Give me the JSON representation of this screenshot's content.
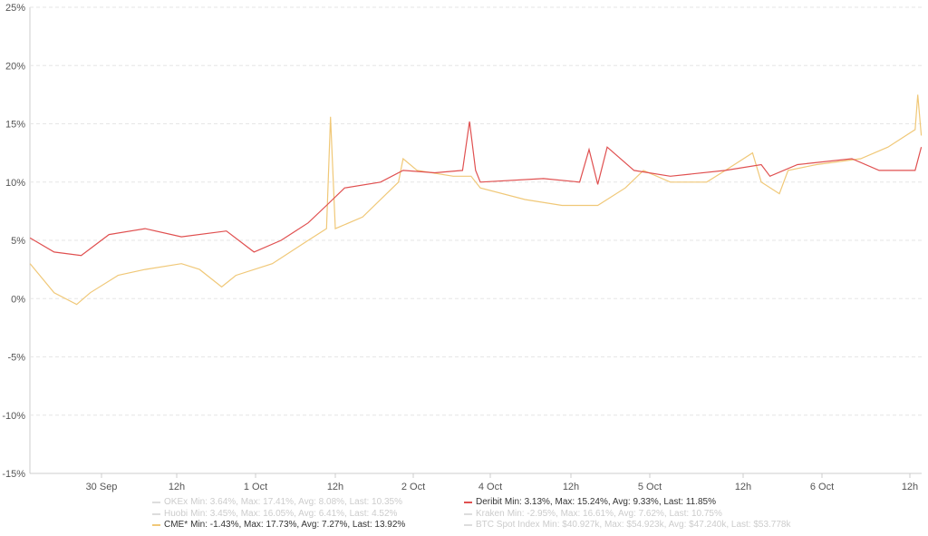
{
  "chart_data": {
    "type": "line",
    "title": "",
    "xlabel": "",
    "ylabel": "",
    "ylim": [
      -15,
      25
    ],
    "y_ticks": [
      "25%",
      "20%",
      "15%",
      "10%",
      "5%",
      "0%",
      "-5%",
      "-10%",
      "-15%"
    ],
    "y_tick_values": [
      25,
      20,
      15,
      10,
      5,
      0,
      -5,
      -10,
      -15
    ],
    "x_ticks": [
      "30 Sep",
      "12h",
      "1 Oct",
      "12h",
      "2 Oct",
      "4 Oct",
      "12h",
      "5 Oct",
      "12h",
      "6 Oct",
      "12h"
    ],
    "x_unit": "tick index (0 = 30 Sep)",
    "grid": true,
    "legend_placement": "bottom",
    "series": [
      {
        "name": "Deribit",
        "color": "#e05050",
        "visible": true,
        "stats": "Min: 3.13%, Max: 15.24%, Avg: 9.33%, Last: 11.85%",
        "x": [
          -0.95,
          -0.63,
          -0.27,
          0.1,
          0.58,
          1.06,
          1.63,
          1.98,
          2.32,
          2.66,
          2.89,
          3.12,
          3.58,
          3.87,
          4.28,
          4.64,
          4.73,
          4.81,
          4.87,
          5.66,
          6.11,
          6.23,
          6.34,
          6.46,
          6.8,
          7.22,
          7.81,
          8.23,
          8.34,
          8.69,
          9.34,
          9.65,
          10.06,
          10.13
        ],
        "y": [
          5.2,
          4.0,
          3.7,
          5.5,
          6.0,
          5.3,
          5.8,
          4.0,
          5.0,
          6.5,
          8.0,
          9.5,
          10.0,
          11.0,
          10.8,
          11.0,
          15.2,
          11.0,
          10.0,
          10.3,
          10.0,
          12.8,
          9.8,
          13.0,
          11.0,
          10.5,
          11.0,
          11.5,
          10.5,
          11.5,
          12.0,
          11.0,
          11.0,
          13.0
        ]
      },
      {
        "name": "CME*",
        "color": "#f0c878",
        "visible": true,
        "stats": "Min: -1.43%, Max: 17.73%, Avg: 7.27%, Last: 13.92%",
        "x": [
          -0.95,
          -0.63,
          -0.33,
          -0.15,
          0.22,
          0.58,
          1.06,
          1.29,
          1.57,
          1.75,
          2.21,
          2.66,
          2.89,
          2.94,
          3.0,
          3.35,
          3.81,
          3.87,
          4.05,
          4.52,
          4.75,
          4.87,
          5.43,
          5.89,
          6.34,
          6.69,
          6.92,
          7.22,
          7.61,
          7.81,
          8.12,
          8.23,
          8.46,
          8.57,
          8.93,
          9.44,
          9.75,
          10.06,
          10.09,
          10.13
        ],
        "y": [
          3.0,
          0.5,
          -0.5,
          0.5,
          2.0,
          2.5,
          3.0,
          2.5,
          1.0,
          2.0,
          3.0,
          5.0,
          6.0,
          15.6,
          6.0,
          7.0,
          10.0,
          12.0,
          11.0,
          10.5,
          10.5,
          9.5,
          8.5,
          8.0,
          8.0,
          9.5,
          11.0,
          10.0,
          10.0,
          11.0,
          12.5,
          10.0,
          9.0,
          11.0,
          11.5,
          12.0,
          13.0,
          14.5,
          17.5,
          14.0
        ]
      },
      {
        "name": "OKEx",
        "color": "#dddddd",
        "visible": false,
        "stats": "Min: 3.64%, Max: 17.41%, Avg: 8.08%, Last: 10.35%"
      },
      {
        "name": "Huobi",
        "color": "#dddddd",
        "visible": false,
        "stats": "Min: 3.45%, Max: 16.05%, Avg: 6.41%, Last: 4.52%"
      },
      {
        "name": "Kraken",
        "color": "#dddddd",
        "visible": false,
        "stats": "Min: -2.95%, Max: 16.61%, Avg: 7.62%, Last: 10.75%"
      },
      {
        "name": "BTC Spot Index",
        "color": "#dddddd",
        "visible": false,
        "stats": "Min: $40.927k, Max: $54.923k, Avg: $47.240k, Last: $53.778k"
      }
    ]
  },
  "legend": {
    "left": [
      {
        "name": "OKEx",
        "stats": "Min: 3.64%, Max: 17.41%, Avg: 8.08%, Last: 10.35%",
        "on": false,
        "color": "#dddddd"
      },
      {
        "name": "Huobi",
        "stats": "Min: 3.45%, Max: 16.05%, Avg: 6.41%, Last: 4.52%",
        "on": false,
        "color": "#dddddd"
      },
      {
        "name": "CME*",
        "stats": "Min: -1.43%, Max: 17.73%, Avg: 7.27%, Last: 13.92%",
        "on": true,
        "color": "#f0c878"
      }
    ],
    "right": [
      {
        "name": "Deribit",
        "stats": "Min: 3.13%, Max: 15.24%, Avg: 9.33%, Last: 11.85%",
        "on": true,
        "color": "#e05050"
      },
      {
        "name": "Kraken",
        "stats": "Min: -2.95%, Max: 16.61%, Avg: 7.62%, Last: 10.75%",
        "on": false,
        "color": "#dddddd"
      },
      {
        "name": "BTC Spot Index",
        "stats": "Min: $40.927k, Max: $54.923k, Avg: $47.240k, Last: $53.778k",
        "on": false,
        "color": "#dddddd"
      }
    ]
  }
}
